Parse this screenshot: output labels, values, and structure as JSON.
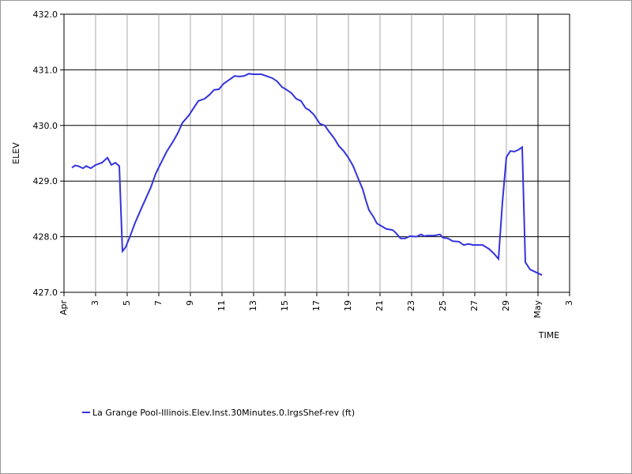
{
  "chart_data": {
    "type": "line",
    "y_label": "ELEV",
    "x_label": "TIME",
    "xlim": [
      0,
      32
    ],
    "ylim": [
      427,
      432
    ],
    "xticks": [
      {
        "value": 0,
        "label": "Apr"
      },
      {
        "value": 2,
        "label": "3"
      },
      {
        "value": 4,
        "label": "5"
      },
      {
        "value": 6,
        "label": "7"
      },
      {
        "value": 8,
        "label": "9"
      },
      {
        "value": 10,
        "label": "11"
      },
      {
        "value": 12,
        "label": "13"
      },
      {
        "value": 14,
        "label": "15"
      },
      {
        "value": 16,
        "label": "17"
      },
      {
        "value": 18,
        "label": "19"
      },
      {
        "value": 20,
        "label": "21"
      },
      {
        "value": 22,
        "label": "23"
      },
      {
        "value": 24,
        "label": "25"
      },
      {
        "value": 26,
        "label": "27"
      },
      {
        "value": 28,
        "label": "29"
      },
      {
        "value": 30,
        "label": "May"
      },
      {
        "value": 32,
        "label": "3"
      }
    ],
    "yticks": [
      {
        "value": 427,
        "label": "427.0"
      },
      {
        "value": 428,
        "label": "428.0"
      },
      {
        "value": 429,
        "label": "429.0"
      },
      {
        "value": 430,
        "label": "430.0"
      },
      {
        "value": 431,
        "label": "431.0"
      },
      {
        "value": 432,
        "label": "432.0"
      }
    ],
    "grid": true,
    "x": [
      0.5,
      0.7,
      0.9,
      1.2,
      1.4,
      1.7,
      2.0,
      2.4,
      2.75,
      3.0,
      3.25,
      3.5,
      3.7,
      3.9,
      4.2,
      4.5,
      4.9,
      5.2,
      5.5,
      5.8,
      6.2,
      6.5,
      6.9,
      7.2,
      7.5,
      7.9,
      8.2,
      8.5,
      8.9,
      9.2,
      9.5,
      9.8,
      10.1,
      10.4,
      10.8,
      11.1,
      11.4,
      11.7,
      12.0,
      12.5,
      12.8,
      13.2,
      13.5,
      13.8,
      14.1,
      14.4,
      14.7,
      15.0,
      15.3,
      15.5,
      15.8,
      16.2,
      16.5,
      16.8,
      17.1,
      17.4,
      17.7,
      18.0,
      18.3,
      18.5,
      18.7,
      18.9,
      19.1,
      19.3,
      19.6,
      19.8,
      20.1,
      20.4,
      20.8,
      21.0,
      21.3,
      21.6,
      21.9,
      22.3,
      22.6,
      22.8,
      23.0,
      23.4,
      23.8,
      24.0,
      24.3,
      24.6,
      25.0,
      25.3,
      25.6,
      25.9,
      26.5,
      26.9,
      27.2,
      27.5,
      27.75,
      28.0,
      28.25,
      28.5,
      28.75,
      29.0,
      29.2,
      29.5,
      29.8,
      30.25
    ],
    "series": [
      {
        "name": "La Grange Pool-Illinois.Elev.Inst.30Minutes.0.lrgsShef-rev (ft)",
        "color": "#3333dd",
        "values": [
          429.24,
          429.28,
          429.27,
          429.23,
          429.27,
          429.23,
          429.29,
          429.33,
          429.42,
          429.29,
          429.33,
          429.27,
          427.74,
          427.81,
          428.02,
          428.25,
          428.51,
          428.7,
          428.89,
          429.13,
          429.36,
          429.53,
          429.71,
          429.86,
          430.05,
          430.18,
          430.31,
          430.44,
          430.48,
          430.55,
          430.64,
          430.65,
          430.75,
          430.81,
          430.89,
          430.88,
          430.89,
          430.93,
          430.92,
          430.92,
          430.89,
          430.85,
          430.79,
          430.69,
          430.64,
          430.58,
          430.48,
          430.44,
          430.31,
          430.28,
          430.2,
          430.03,
          430.0,
          429.88,
          429.77,
          429.63,
          429.54,
          429.42,
          429.27,
          429.13,
          428.99,
          428.86,
          428.66,
          428.48,
          428.35,
          428.24,
          428.19,
          428.14,
          428.12,
          428.07,
          427.97,
          427.97,
          428.01,
          428.0,
          428.04,
          428.01,
          428.02,
          428.02,
          428.04,
          427.98,
          427.97,
          427.92,
          427.91,
          427.85,
          427.87,
          427.85,
          427.85,
          427.78,
          427.7,
          427.6,
          428.62,
          429.43,
          429.54,
          429.53,
          429.56,
          429.61,
          427.54,
          427.41,
          427.37,
          427.31
        ]
      }
    ]
  }
}
